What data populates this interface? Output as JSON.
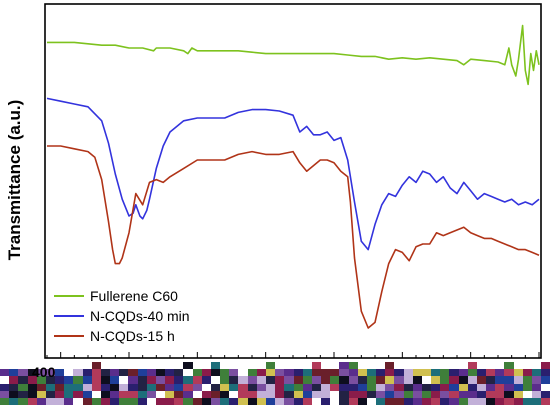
{
  "chart_data": {
    "type": "line",
    "ylabel": "Transmittance (a.u.)",
    "xlabel": "",
    "x_tick_first": "400",
    "xlim": [
      400,
      4000
    ],
    "grid": false,
    "legend_position": "bottom-left",
    "series": [
      {
        "name": "Fullerene C60",
        "color": "#7dc21e",
        "x": [
          400,
          500,
          600,
          700,
          800,
          900,
          1000,
          1100,
          1180,
          1200,
          1300,
          1400,
          1430,
          1460,
          1500,
          1600,
          1700,
          1800,
          1900,
          2000,
          2100,
          2200,
          2300,
          2400,
          2500,
          2600,
          2700,
          2800,
          2900,
          3000,
          3100,
          3200,
          3300,
          3400,
          3450,
          3500,
          3600,
          3700,
          3750,
          3780,
          3800,
          3830,
          3850,
          3880,
          3900,
          3920,
          3940,
          3960,
          3980,
          4000
        ],
        "y": [
          0.82,
          0.82,
          0.82,
          0.815,
          0.81,
          0.81,
          0.8,
          0.8,
          0.79,
          0.8,
          0.8,
          0.79,
          0.78,
          0.8,
          0.79,
          0.79,
          0.79,
          0.79,
          0.785,
          0.78,
          0.78,
          0.78,
          0.78,
          0.78,
          0.78,
          0.775,
          0.77,
          0.77,
          0.76,
          0.765,
          0.76,
          0.765,
          0.76,
          0.755,
          0.74,
          0.76,
          0.755,
          0.75,
          0.74,
          0.8,
          0.74,
          0.7,
          0.76,
          0.88,
          0.72,
          0.67,
          0.78,
          0.72,
          0.79,
          0.74
        ]
      },
      {
        "name": "N-CQDs-40 min",
        "color": "#3333dd",
        "x": [
          400,
          500,
          600,
          700,
          800,
          850,
          900,
          950,
          1000,
          1030,
          1050,
          1080,
          1100,
          1130,
          1150,
          1200,
          1250,
          1300,
          1400,
          1500,
          1600,
          1700,
          1800,
          1900,
          2000,
          2100,
          2200,
          2250,
          2300,
          2350,
          2400,
          2450,
          2500,
          2550,
          2600,
          2650,
          2700,
          2750,
          2800,
          2850,
          2900,
          2950,
          3000,
          3050,
          3100,
          3150,
          3200,
          3250,
          3300,
          3350,
          3400,
          3450,
          3500,
          3550,
          3600,
          3650,
          3700,
          3750,
          3800,
          3850,
          3900,
          3950,
          4000
        ],
        "y": [
          0.62,
          0.61,
          0.6,
          0.59,
          0.54,
          0.46,
          0.35,
          0.26,
          0.2,
          0.21,
          0.24,
          0.2,
          0.19,
          0.22,
          0.26,
          0.37,
          0.45,
          0.5,
          0.54,
          0.55,
          0.55,
          0.55,
          0.57,
          0.58,
          0.58,
          0.575,
          0.56,
          0.5,
          0.52,
          0.49,
          0.49,
          0.5,
          0.47,
          0.48,
          0.4,
          0.25,
          0.11,
          0.08,
          0.17,
          0.24,
          0.28,
          0.27,
          0.31,
          0.34,
          0.32,
          0.36,
          0.35,
          0.32,
          0.34,
          0.3,
          0.28,
          0.32,
          0.29,
          0.26,
          0.28,
          0.27,
          0.26,
          0.25,
          0.26,
          0.24,
          0.25,
          0.24,
          0.26
        ]
      },
      {
        "name": "N-CQDs-15 h",
        "color": "#b03418",
        "x": [
          400,
          500,
          600,
          700,
          750,
          800,
          850,
          880,
          900,
          930,
          950,
          1000,
          1050,
          1100,
          1150,
          1200,
          1250,
          1300,
          1400,
          1500,
          1600,
          1700,
          1800,
          1900,
          2000,
          2100,
          2200,
          2250,
          2300,
          2350,
          2400,
          2450,
          2500,
          2550,
          2600,
          2620,
          2650,
          2700,
          2750,
          2800,
          2850,
          2900,
          2950,
          3000,
          3050,
          3100,
          3150,
          3200,
          3250,
          3300,
          3350,
          3400,
          3450,
          3500,
          3550,
          3600,
          3650,
          3700,
          3750,
          3800,
          3850,
          3900,
          3950,
          4000
        ],
        "y": [
          0.45,
          0.45,
          0.44,
          0.43,
          0.41,
          0.33,
          0.18,
          0.08,
          0.03,
          0.03,
          0.05,
          0.14,
          0.28,
          0.24,
          0.32,
          0.33,
          0.32,
          0.34,
          0.37,
          0.4,
          0.4,
          0.4,
          0.42,
          0.43,
          0.42,
          0.42,
          0.43,
          0.39,
          0.36,
          0.38,
          0.4,
          0.4,
          0.39,
          0.36,
          0.34,
          0.25,
          0.05,
          -0.14,
          -0.2,
          -0.18,
          -0.07,
          0.03,
          0.08,
          0.07,
          0.04,
          0.09,
          0.1,
          0.1,
          0.14,
          0.13,
          0.14,
          0.15,
          0.16,
          0.14,
          0.13,
          0.12,
          0.12,
          0.11,
          0.1,
          0.09,
          0.08,
          0.08,
          0.07,
          0.06
        ]
      }
    ],
    "ylim": [
      -0.3,
      0.95
    ]
  }
}
